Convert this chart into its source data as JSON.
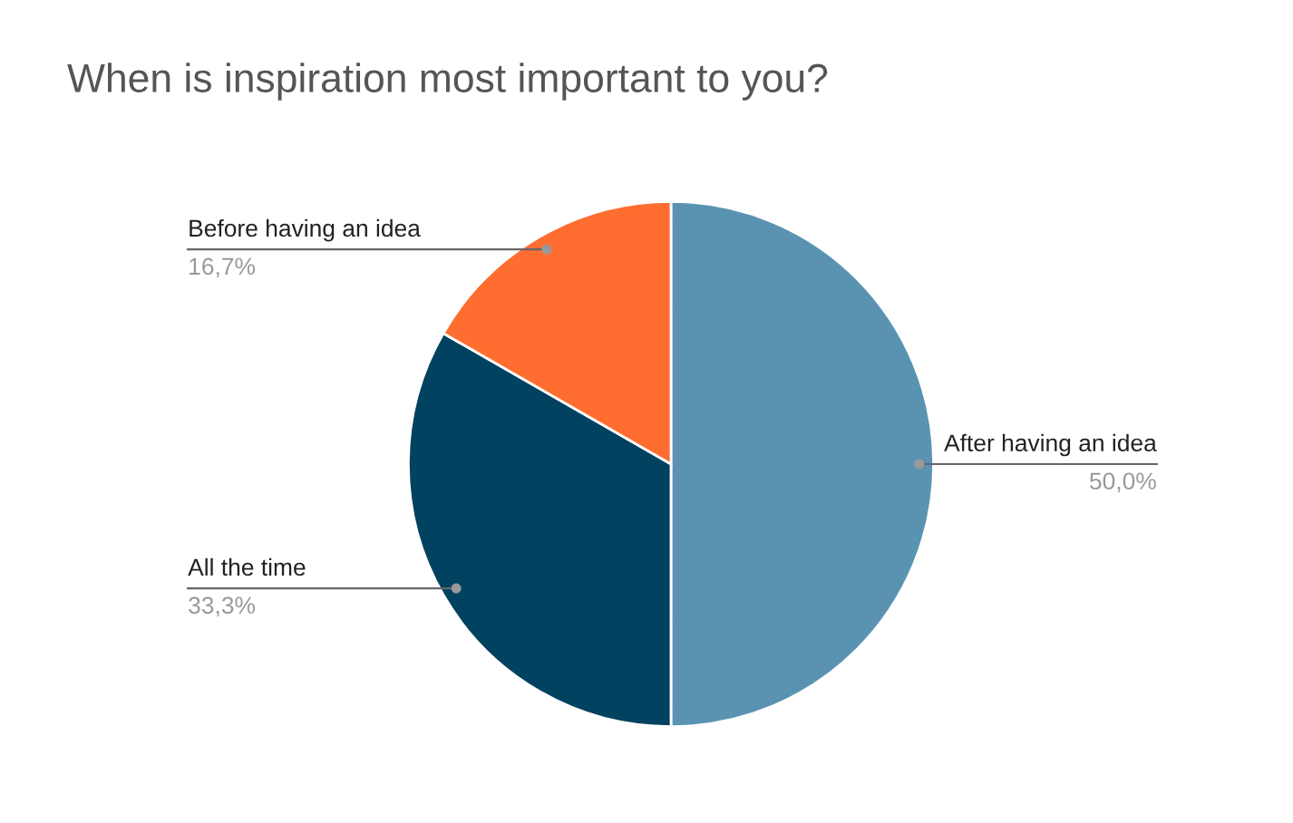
{
  "chart_data": {
    "type": "pie",
    "title": "When is inspiration most important to you?",
    "categories": [
      "After having an idea",
      "All the time",
      "Before having an idea"
    ],
    "values": [
      50.0,
      33.3,
      16.7
    ],
    "colors": [
      "#5a93b2",
      "#00425f",
      "#ff6d31"
    ],
    "value_labels": [
      "50,0%",
      "33,3%",
      "16,7%"
    ]
  }
}
